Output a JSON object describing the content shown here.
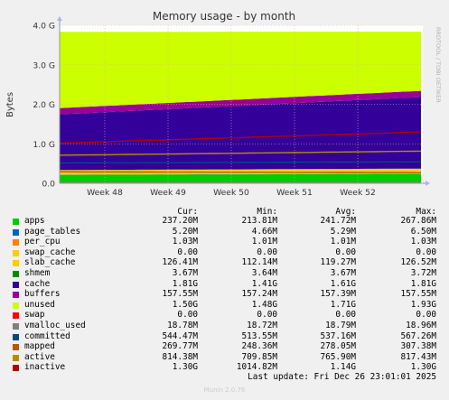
{
  "chart_data": {
    "type": "area",
    "title": "Memory usage - by month",
    "ylabel": "Bytes",
    "ylim": [
      0,
      4.0
    ],
    "yunit": "G",
    "yticks": [
      "0.0",
      "1.0 G",
      "2.0 G",
      "3.0 G",
      "4.0 G"
    ],
    "ytick_values": [
      0,
      1.0,
      2.0,
      3.0,
      4.0
    ],
    "xticks": [
      "Week 48",
      "Week 49",
      "Week 50",
      "Week 51",
      "Week 52"
    ],
    "grid": true,
    "watermark": "RRDTOOL / TOBI OETIKER",
    "columns": [
      "Cur:",
      "Min:",
      "Avg:",
      "Max:"
    ],
    "series": [
      {
        "name": "apps",
        "color": "#00cc00",
        "stacked": true,
        "cur": "237.20M",
        "min": "213.81M",
        "avg": "241.72M",
        "max": "267.86M",
        "start_g": 0.214,
        "end_g": 0.237
      },
      {
        "name": "page_tables",
        "color": "#0066b3",
        "stacked": true,
        "cur": "5.20M",
        "min": "4.66M",
        "avg": "5.29M",
        "max": "6.50M",
        "start_g": 0.005,
        "end_g": 0.005
      },
      {
        "name": "per_cpu",
        "color": "#ff8000",
        "stacked": true,
        "cur": "1.03M",
        "min": "1.01M",
        "avg": "1.01M",
        "max": "1.03M",
        "start_g": 0.001,
        "end_g": 0.001
      },
      {
        "name": "swap_cache",
        "color": "#ffcc00",
        "stacked": true,
        "cur": "0.00",
        "min": "0.00",
        "avg": "0.00",
        "max": "0.00",
        "start_g": 0,
        "end_g": 0
      },
      {
        "name": "slab_cache",
        "color": "#ffcc00",
        "stacked": true,
        "cur": "126.41M",
        "min": "112.14M",
        "avg": "119.27M",
        "max": "126.52M",
        "start_g": 0.112,
        "end_g": 0.126
      },
      {
        "name": "shmem",
        "color": "#008f00",
        "stacked": true,
        "cur": "3.67M",
        "min": "3.64M",
        "avg": "3.67M",
        "max": "3.72M",
        "start_g": 0.004,
        "end_g": 0.004
      },
      {
        "name": "cache",
        "color": "#330099",
        "stacked": true,
        "cur": "1.81G",
        "min": "1.41G",
        "avg": "1.61G",
        "max": "1.81G",
        "start_g": 1.41,
        "end_g": 1.81
      },
      {
        "name": "buffers",
        "color": "#990099",
        "stacked": true,
        "cur": "157.55M",
        "min": "157.24M",
        "avg": "157.39M",
        "max": "157.55M",
        "start_g": 0.157,
        "end_g": 0.158
      },
      {
        "name": "unused",
        "color": "#ccff00",
        "stacked": true,
        "cur": "1.50G",
        "min": "1.48G",
        "avg": "1.71G",
        "max": "1.93G",
        "start_g": 1.93,
        "end_g": 1.5
      },
      {
        "name": "swap",
        "color": "#ff0000",
        "stacked": true,
        "cur": "0.00",
        "min": "0.00",
        "avg": "0.00",
        "max": "0.00",
        "start_g": 0,
        "end_g": 0
      },
      {
        "name": "vmalloc_used",
        "color": "#808080",
        "stacked": false,
        "cur": "18.78M",
        "min": "18.72M",
        "avg": "18.79M",
        "max": "18.96M",
        "start_g": 0.019,
        "end_g": 0.019
      },
      {
        "name": "committed",
        "color": "#004d80",
        "stacked": false,
        "cur": "544.47M",
        "min": "513.55M",
        "avg": "537.16M",
        "max": "567.26M",
        "start_g": 0.514,
        "end_g": 0.544
      },
      {
        "name": "mapped",
        "color": "#b35900",
        "stacked": false,
        "cur": "269.77M",
        "min": "248.36M",
        "avg": "278.05M",
        "max": "307.38M",
        "start_g": 0.29,
        "end_g": 0.27
      },
      {
        "name": "active",
        "color": "#b38f00",
        "stacked": false,
        "cur": "814.38M",
        "min": "709.85M",
        "avg": "765.90M",
        "max": "817.43M",
        "start_g": 0.71,
        "end_g": 0.814
      },
      {
        "name": "inactive",
        "color": "#b30000",
        "stacked": false,
        "cur": "1.30G",
        "min": "1014.82M",
        "avg": "1.14G",
        "max": "1.30G",
        "start_g": 1.015,
        "end_g": 1.3
      }
    ]
  },
  "footer": {
    "last_update": "Last update: Fri Dec 26 23:01:01 2025",
    "munin_version": "Munin 2.0.76"
  }
}
